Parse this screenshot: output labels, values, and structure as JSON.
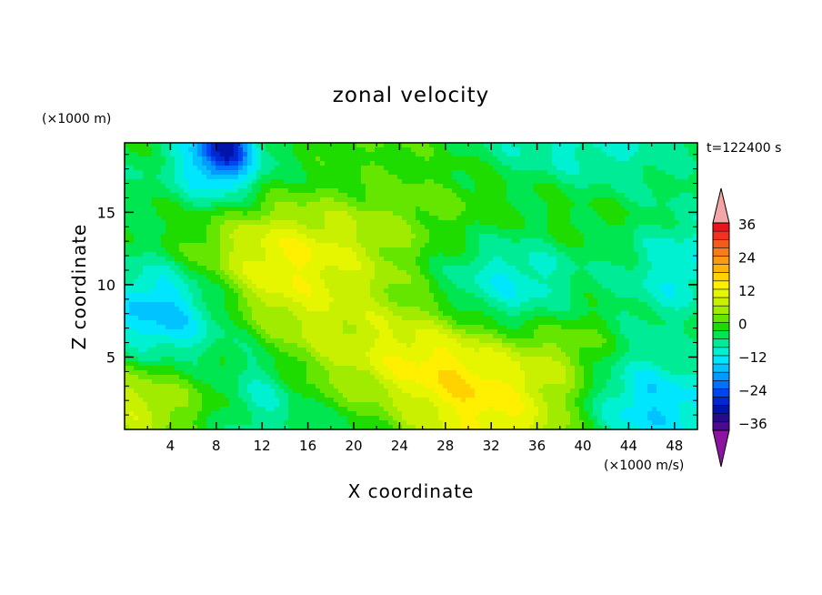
{
  "chart_data": {
    "type": "heatmap",
    "title": "zonal velocity",
    "xlabel": "X coordinate",
    "ylabel": "Z coordinate",
    "x_unit": "(×1000 m/s)",
    "y_unit": "(×1000 m)",
    "time_label": "t=122400 s",
    "xlim": [
      0,
      50
    ],
    "ylim": [
      0,
      19.8
    ],
    "x_ticks": [
      "4",
      "8",
      "12",
      "16",
      "20",
      "24",
      "28",
      "32",
      "36",
      "40",
      "44",
      "48"
    ],
    "y_ticks": [
      "5",
      "10",
      "15"
    ],
    "colorbar": {
      "tick_labels": [
        "36",
        "24",
        "12",
        "0",
        "−12",
        "−24",
        "−36"
      ],
      "levels_top_to_bottom": [
        {
          "min": 39,
          "color": "#f4a6a6"
        },
        {
          "min": 36,
          "color": "#e8141e"
        },
        {
          "min": 33,
          "color": "#f0321e"
        },
        {
          "min": 30,
          "color": "#f45a1e"
        },
        {
          "min": 27,
          "color": "#f87d1a"
        },
        {
          "min": 24,
          "color": "#fa9a14"
        },
        {
          "min": 21,
          "color": "#fcb40a"
        },
        {
          "min": 18,
          "color": "#ffd200"
        },
        {
          "min": 15,
          "color": "#ffef00"
        },
        {
          "min": 12,
          "color": "#e6f500"
        },
        {
          "min": 9,
          "color": "#c8f000"
        },
        {
          "min": 6,
          "color": "#a0eb00"
        },
        {
          "min": 3,
          "color": "#64e600"
        },
        {
          "min": 0,
          "color": "#1edc00"
        },
        {
          "min": -3,
          "color": "#00e650"
        },
        {
          "min": -6,
          "color": "#00eb96"
        },
        {
          "min": -9,
          "color": "#00f0d2"
        },
        {
          "min": -12,
          "color": "#00e6ff"
        },
        {
          "min": -15,
          "color": "#00c3ff"
        },
        {
          "min": -18,
          "color": "#009bff"
        },
        {
          "min": -21,
          "color": "#0070ff"
        },
        {
          "min": -24,
          "color": "#0046f0"
        },
        {
          "min": -27,
          "color": "#0028d2"
        },
        {
          "min": -30,
          "color": "#0014aa"
        },
        {
          "min": -33,
          "color": "#280a8c"
        },
        {
          "min": -36,
          "color": "#4b0a96"
        },
        {
          "max": -39,
          "color": "#8c14a0"
        }
      ]
    },
    "field_features": [
      {
        "x": 31,
        "z": 0.4,
        "radius": 7,
        "value": 14
      },
      {
        "x": 31,
        "z": 1.5,
        "radius": 5,
        "value": 6
      },
      {
        "x": 1,
        "z": 0.3,
        "radius": 3,
        "value": 10
      },
      {
        "x": 13,
        "z": 7.7,
        "radius": 3.5,
        "value": 8
      },
      {
        "x": 39,
        "z": 5.8,
        "radius": 3.5,
        "value": 8
      },
      {
        "x": 15,
        "z": 12.8,
        "radius": 6,
        "value": 6
      },
      {
        "x": 22,
        "z": 14,
        "radius": 8,
        "value": 4
      },
      {
        "x": 21,
        "z": 9.5,
        "radius": 5,
        "value": 3
      },
      {
        "x": 12,
        "z": 3.2,
        "radius": 2.5,
        "value": -10
      },
      {
        "x": 34,
        "z": 9,
        "radius": 5,
        "value": -11
      },
      {
        "x": 8,
        "z": 18.8,
        "radius": 2.5,
        "value": -12
      },
      {
        "x": 9,
        "z": 19.8,
        "radius": 1.5,
        "value": -15
      },
      {
        "x": 3,
        "z": 8,
        "radius": 3,
        "value": -8
      },
      {
        "x": 44,
        "z": 1.5,
        "radius": 4,
        "value": -8
      },
      {
        "x": 48,
        "z": 10,
        "radius": 3,
        "value": -6
      }
    ]
  }
}
